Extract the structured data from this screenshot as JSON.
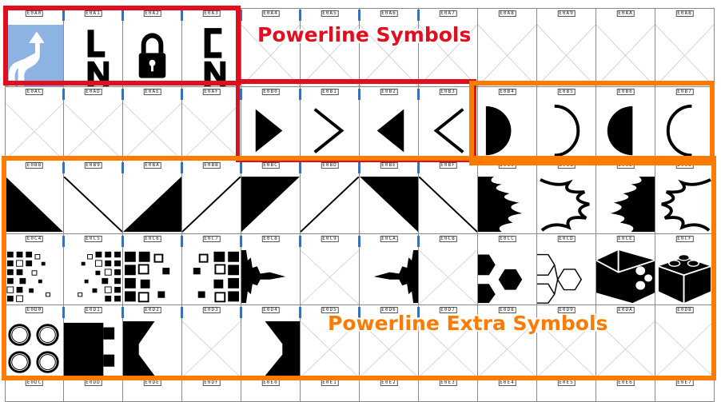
{
  "grid": {
    "rows": [
      [
        "E0A0",
        "E0A1",
        "E0A2",
        "E0A3",
        "E0A4",
        "E0A5",
        "E0A6",
        "E0A7",
        "E0A8",
        "E0A9",
        "E0AA",
        "E0AB"
      ],
      [
        "E0AC",
        "E0AD",
        "E0AE",
        "E0AF",
        "E0B0",
        "E0B1",
        "E0B2",
        "E0B3",
        "E0B4",
        "E0B5",
        "E0B6",
        "E0B7"
      ],
      [
        "E0B8",
        "E0B9",
        "E0BA",
        "E0BB",
        "E0BC",
        "E0BD",
        "E0BE",
        "E0BF",
        "E0C0",
        "E0C1",
        "E0C2",
        "E0C3"
      ],
      [
        "E0C4",
        "E0C5",
        "E0C6",
        "E0C7",
        "E0C8",
        "E0C9",
        "E0CA",
        "E0CB",
        "E0CC",
        "E0CD",
        "E0CE",
        "E0CF"
      ],
      [
        "E0D0",
        "E0D1",
        "E0D2",
        "E0D3",
        "E0D4",
        "E0D5",
        "E0D6",
        "E0D7",
        "E0D8",
        "E0D9",
        "E0DA",
        "E0DB"
      ],
      [
        "E0DC",
        "E0DD",
        "E0DE",
        "E0DF",
        "E0E0",
        "E0E1",
        "E0E2",
        "E0E3",
        "E0E4",
        "E0E5",
        "E0E6",
        "E0E7"
      ]
    ],
    "glyph_icons": {
      "E0A0": "branch-icon",
      "E0A1": "line-number-icon",
      "E0A2": "padlock-icon",
      "E0A3": "column-number-icon",
      "E0AC": "empty",
      "E0AD": "empty",
      "E0AE": "empty",
      "E0AF": "empty",
      "E0B0": "right-triangle-icon",
      "E0B1": "right-chevron-icon",
      "E0B2": "left-triangle-icon",
      "E0B3": "left-chevron-icon",
      "E0B4": "right-half-circle-icon",
      "E0B5": "right-arc-icon",
      "E0B6": "left-half-circle-icon",
      "E0B7": "left-arc-icon",
      "E0B8": "lower-left-triangle-icon",
      "E0B9": "backslash-separator-icon",
      "E0BA": "lower-right-triangle-icon",
      "E0BB": "slash-separator-icon",
      "E0BC": "upper-left-triangle-icon",
      "E0BD": "slash-separator-thin-icon",
      "E0BE": "upper-right-triangle-icon",
      "E0BF": "backslash-separator-thin-icon",
      "E0C0": "flame-icon",
      "E0C1": "flame-thin-icon",
      "E0C2": "flame-left-icon",
      "E0C3": "flame-thin-left-icon",
      "E0C4": "pixelated-squares-small-icon",
      "E0C5": "pixelated-squares-small-left-icon",
      "E0C6": "pixelated-squares-big-icon",
      "E0C7": "pixelated-squares-big-left-icon",
      "E0C8": "ice-waveform-icon",
      "E0C9": "empty",
      "E0CA": "ice-waveform-left-icon",
      "E0CB": "empty",
      "E0CC": "honeycomb-icon",
      "E0CD": "honeycomb-outline-icon",
      "E0CE": "lego-separator-icon",
      "E0CF": "lego-block-facing-icon",
      "E0D0": "lego-block-sideways-icon",
      "E0D1": "lego-block-icon",
      "E0D2": "trapezoid-right-icon",
      "E0D3": "empty",
      "E0D4": "trapezoid-left-icon"
    },
    "accent_blue": "#3c6fb5"
  },
  "annotations": {
    "powerline_label": "Powerline Symbols",
    "extra_label": "Powerline Extra Symbols",
    "red": "#e00e1f",
    "orange": "#ff7b00"
  }
}
